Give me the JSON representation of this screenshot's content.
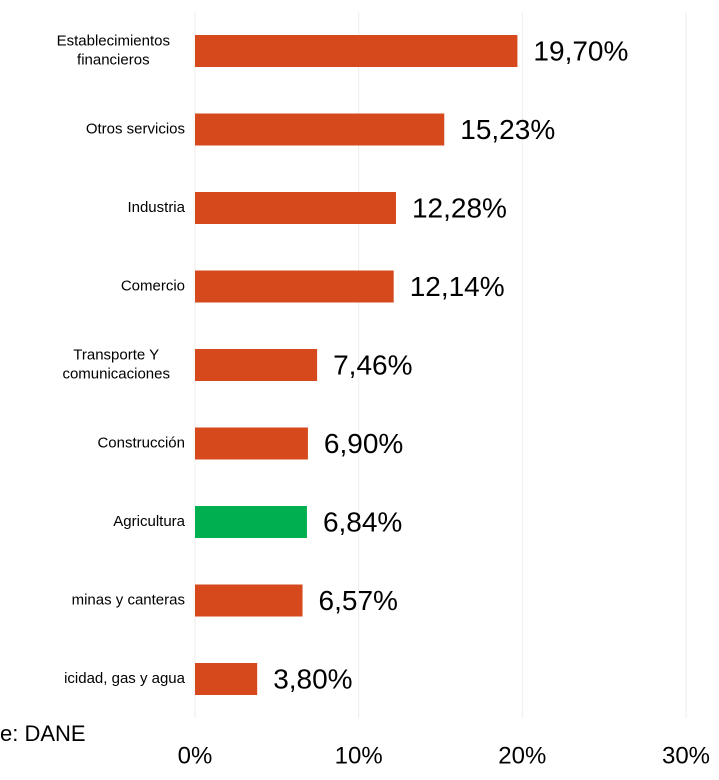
{
  "chart_data": {
    "type": "bar",
    "orientation": "horizontal",
    "source": "e: DANE",
    "categories": [
      "Establecimientos\nfinancieros",
      "Otros servicios",
      "Industria",
      "Comercio",
      "Transporte Y\ncomunicaciones",
      "Construcción",
      "Agricultura",
      "minas y canteras",
      "icidad, gas y agua"
    ],
    "values": [
      19.7,
      15.23,
      12.28,
      12.14,
      7.46,
      6.9,
      6.84,
      6.57,
      3.8
    ],
    "value_labels": [
      "19,70%",
      "15,23%",
      "12,28%",
      "12,14%",
      "7,46%",
      "6,90%",
      "6,84%",
      "6,57%",
      "3,80%"
    ],
    "colors": [
      "#d5491c",
      "#d5491c",
      "#d5491c",
      "#d5491c",
      "#d5491c",
      "#d5491c",
      "#00b050",
      "#d5491c",
      "#d5491c"
    ],
    "xlim": [
      0,
      30
    ],
    "xticks": [
      {
        "value": 0,
        "label": "0%"
      },
      {
        "value": 10,
        "label": "10%"
      },
      {
        "value": 20,
        "label": "20%"
      },
      {
        "value": 30,
        "label": "30%"
      }
    ],
    "grid": true
  }
}
